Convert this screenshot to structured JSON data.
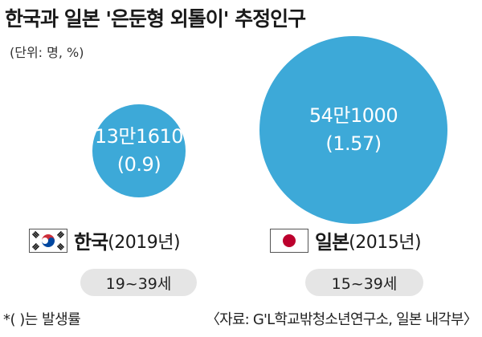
{
  "header": {
    "title": "한국과 일본 '은둔형 외톨이' 추정인구",
    "unit": "(단위: 명, %)"
  },
  "chart_data": {
    "type": "bubble",
    "title": "한국과 일본 '은둔형 외톨이' 추정인구",
    "unit": "(단위: 명, %)",
    "color": "#3da9d8",
    "series": [
      {
        "country": "한국",
        "year": "(2019년)",
        "age_range": "19~39세",
        "value": 131610,
        "value_label": "13만1610",
        "rate": 0.9,
        "rate_label": "(0.9)"
      },
      {
        "country": "일본",
        "year": "(2015년)",
        "age_range": "15~39세",
        "value": 541000,
        "value_label": "54만1000",
        "rate": 1.57,
        "rate_label": "(1.57)"
      }
    ]
  },
  "footer": {
    "note": "*(  )는 발생률",
    "source": "〈자료: G'L학교밖청소년연구소, 일본 내각부〉"
  },
  "icons": [
    "korea-flag-icon",
    "japan-flag-icon"
  ]
}
